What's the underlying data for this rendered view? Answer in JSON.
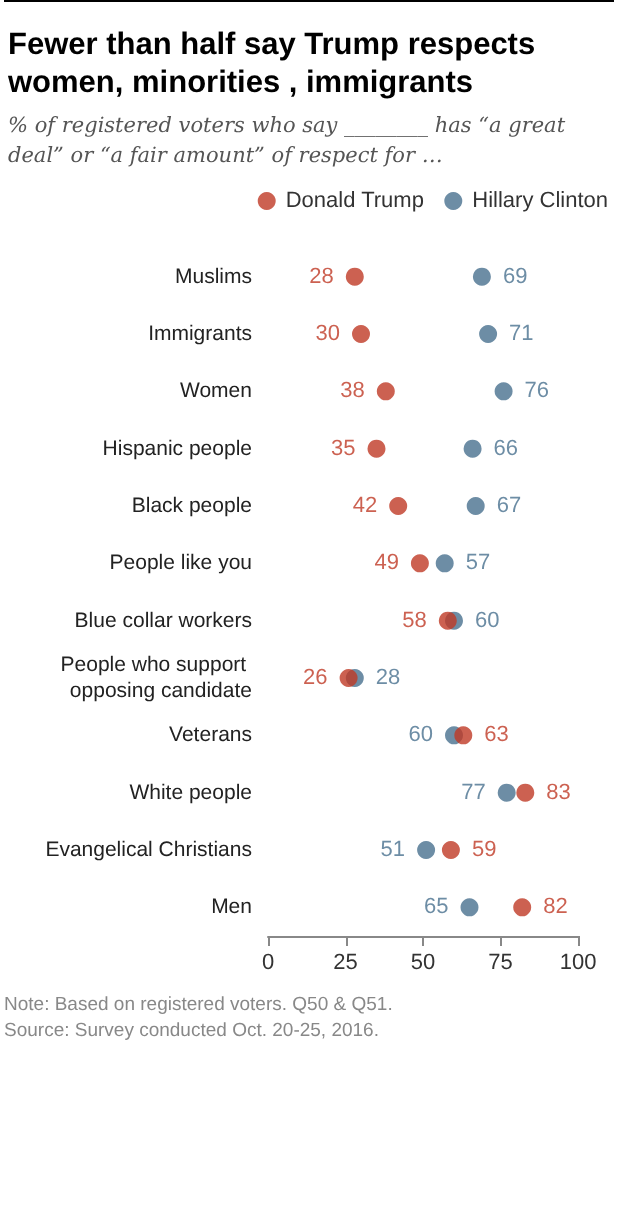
{
  "chart_data": {
    "type": "scatter",
    "title": "Fewer than half say Trump respects women, minorities , immigrants",
    "subtitle": "% of registered voters who say ________ has “a great deal” or “a fair amount” of respect for …",
    "orientation": "horizontal",
    "categories": [
      "Muslims",
      "Immigrants",
      "Women",
      "Hispanic people",
      "Black people",
      "People like you",
      "Blue collar workers",
      "People who support opposing candidate",
      "Veterans",
      "White people",
      "Evangelical Christians",
      "Men"
    ],
    "series": [
      {
        "name": "Donald Trump",
        "color": "#bf3a26",
        "values": [
          28,
          30,
          38,
          35,
          42,
          49,
          58,
          26,
          63,
          83,
          59,
          82
        ]
      },
      {
        "name": "Hillary Clinton",
        "color": "#49708f",
        "values": [
          69,
          71,
          76,
          66,
          67,
          57,
          60,
          28,
          60,
          77,
          51,
          65
        ]
      }
    ],
    "xlim": [
      0,
      100
    ],
    "xticks": [
      0,
      25,
      50,
      75,
      100
    ],
    "grid": false,
    "legend": "top",
    "marker": "circle",
    "data_labels": true,
    "annotations": [
      "Note: Based on registered voters. Q50 & Q51.",
      "Source: Survey conducted Oct. 20-25, 2016."
    ]
  }
}
